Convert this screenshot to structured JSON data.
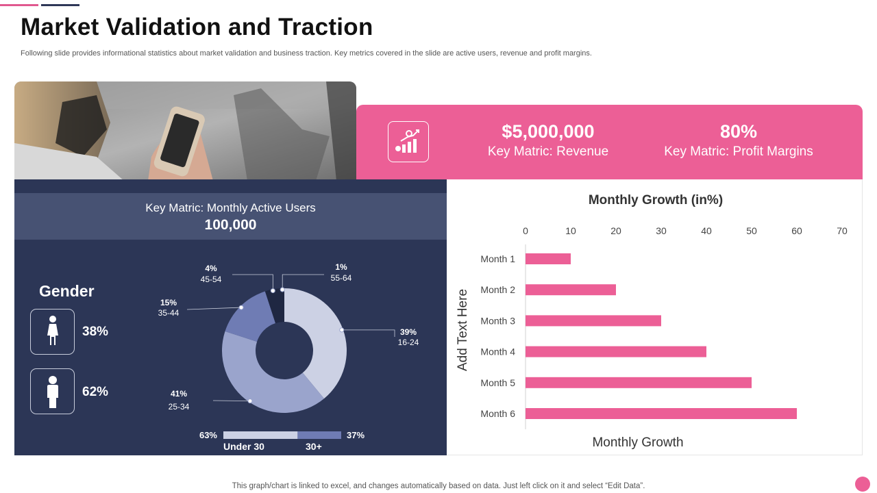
{
  "page": {
    "title": "Market Validation and Traction",
    "subtitle": "Following slide provides informational statistics about market validation and business traction. Key metrics covered in the slide are active users, revenue and profit margins.",
    "footnote": "This graph/chart is linked to excel,  and changes automatically based on data. Just left click on it and select “Edit Data”."
  },
  "icons": {
    "growth": "growth-chart-icon",
    "female": "female-icon",
    "male": "male-icon"
  },
  "colors": {
    "pink": "#ec5f96",
    "navy": "#2c3656",
    "navy_light": "#475273",
    "donut_light": "#ccd1e4",
    "donut_mid": "#9aa4cc",
    "donut_blue": "#6f7cb4",
    "donut_dark": "#1f2742"
  },
  "metrics": {
    "revenue": {
      "value": "$5,000,000",
      "label": "Key Matric: Revenue"
    },
    "profit": {
      "value": "80%",
      "label": "Key Matric: Profit Margins"
    }
  },
  "users": {
    "label": "Key Matric: Monthly  Active Users",
    "value": "100,000"
  },
  "gender": {
    "title": "Gender",
    "female_pct": "38%",
    "male_pct": "62%"
  },
  "age": {
    "segments": [
      {
        "pct": "39%",
        "label": "16-24",
        "value": 39
      },
      {
        "pct": "41%",
        "label": "25-34",
        "value": 41
      },
      {
        "pct": "15%",
        "label": "35-44",
        "value": 15
      },
      {
        "pct": "4%",
        "label": "45-54",
        "value": 4
      },
      {
        "pct": "1%",
        "label": "55-64",
        "value": 1
      }
    ],
    "split": {
      "under_pct": "63%",
      "under_label": "Under 30",
      "under_value": 63,
      "over_pct": "37%",
      "over_label": "30+",
      "over_value": 37
    }
  },
  "chart_data": {
    "type": "bar",
    "orientation": "horizontal",
    "title": "Monthly Growth (in%)",
    "xlabel": "Monthly  Growth",
    "ylabel": "Add Text Here",
    "categories": [
      "Month 1",
      "Month 2",
      "Month 3",
      "Month 4",
      "Month 5",
      "Month 6"
    ],
    "values": [
      10,
      20,
      30,
      40,
      50,
      60
    ],
    "xlim": [
      0,
      70
    ],
    "xticks": [
      "0",
      "10",
      "20",
      "30",
      "40",
      "50",
      "60",
      "70"
    ],
    "grid": false,
    "color": "#ec5f96"
  }
}
